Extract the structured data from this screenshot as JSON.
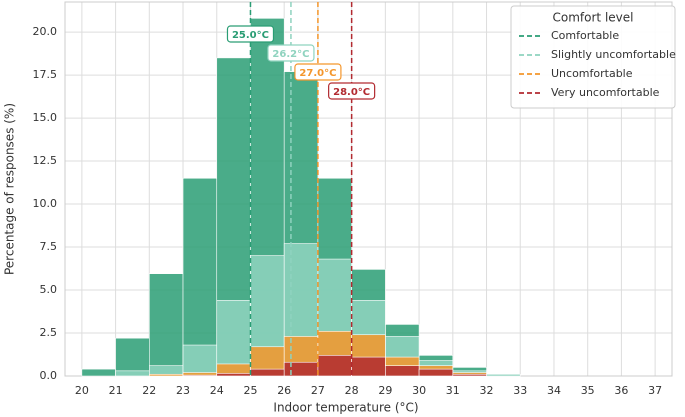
{
  "chart_data": {
    "type": "histogram",
    "xlabel": "Indoor temperature (°C)",
    "ylabel": "Percentage of responses (%)",
    "bins": [
      20,
      21,
      22,
      23,
      24,
      25,
      26,
      27,
      28,
      29,
      30,
      31,
      32,
      33
    ],
    "series": [
      {
        "name": "Comfortable",
        "color": "#2a9d74",
        "values": [
          0.4,
          2.2,
          5.95,
          11.5,
          18.5,
          20.8,
          17.7,
          11.5,
          6.2,
          3.0,
          1.2,
          0.5,
          0.1
        ],
        "mean": 25.0,
        "mean_label": "25.0°C"
      },
      {
        "name": "Slightly uncomfortable",
        "color": "#8fd3bf",
        "values": [
          0,
          0.3,
          0.6,
          1.8,
          4.4,
          7.0,
          7.7,
          6.8,
          4.4,
          2.3,
          0.9,
          0.3,
          0.1
        ],
        "mean": 26.2,
        "mean_label": "26.2°C"
      },
      {
        "name": "Uncomfortable",
        "color": "#f4962b",
        "values": [
          0,
          0,
          0.1,
          0.2,
          0.7,
          1.7,
          2.3,
          2.6,
          2.4,
          1.1,
          0.6,
          0.2,
          0
        ],
        "mean": 27.0,
        "mean_label": "27.0°C"
      },
      {
        "name": "Very uncomfortable",
        "color": "#b22a30",
        "values": [
          0,
          0,
          0,
          0.05,
          0.15,
          0.4,
          0.8,
          1.2,
          1.1,
          0.6,
          0.4,
          0.1,
          0
        ],
        "mean": 28.0,
        "mean_label": "28.0°C"
      }
    ],
    "legend_title": "Comfort level",
    "legend": "upper right",
    "xlim": [
      19.5,
      37.5
    ],
    "ylim": [
      0,
      21.75
    ],
    "xticks": [
      20,
      21,
      22,
      23,
      24,
      25,
      26,
      27,
      28,
      29,
      30,
      31,
      32,
      33,
      34,
      35,
      36,
      37
    ],
    "yticks": [
      {
        "value": 0,
        "label": "0.0"
      },
      2.5,
      {
        "value": 5,
        "label": "5.0"
      },
      7.5,
      {
        "value": 10,
        "label": "10.0"
      },
      12.5,
      {
        "value": 15,
        "label": "15.0"
      },
      17.5,
      {
        "value": 20,
        "label": "20.0"
      }
    ],
    "grid": true
  }
}
